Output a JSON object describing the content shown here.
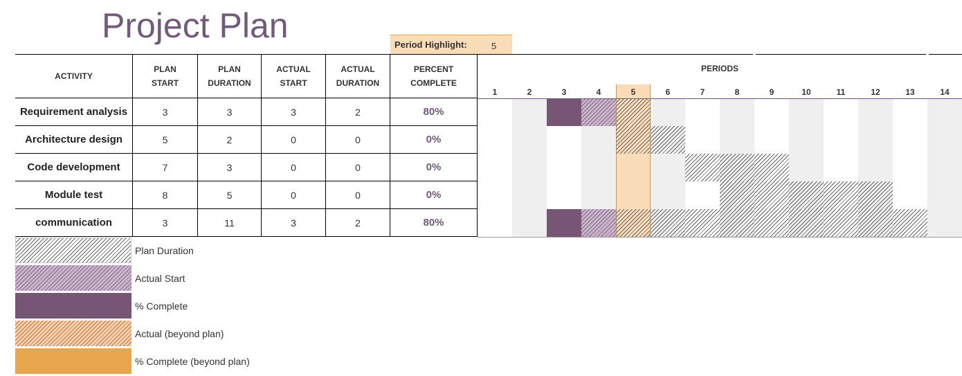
{
  "title": "Project Plan",
  "period_highlight": {
    "label": "Period Highlight:",
    "value": 5
  },
  "table": {
    "headers": [
      "ACTIVITY",
      "PLAN START",
      "PLAN DURATION",
      "ACTUAL START",
      "ACTUAL DURATION",
      "PERCENT COMPLETE"
    ],
    "rows": [
      [
        "Requirement analysis",
        3,
        3,
        3,
        2,
        "80%"
      ],
      [
        "Architecture design",
        5,
        2,
        0,
        0,
        "0%"
      ],
      [
        "Code development",
        7,
        3,
        0,
        0,
        "0%"
      ],
      [
        "Module test",
        8,
        5,
        0,
        0,
        "0%"
      ],
      [
        "communication",
        3,
        11,
        3,
        2,
        "80%"
      ]
    ]
  },
  "periods": {
    "label": "PERIODS",
    "values": [
      1,
      2,
      3,
      4,
      5,
      6,
      7,
      8,
      9,
      10,
      11,
      12,
      13,
      14
    ]
  },
  "legend": [
    "Plan Duration",
    "Actual Start",
    "% Complete",
    "Actual (beyond plan)",
    "% Complete (beyond plan)"
  ]
}
